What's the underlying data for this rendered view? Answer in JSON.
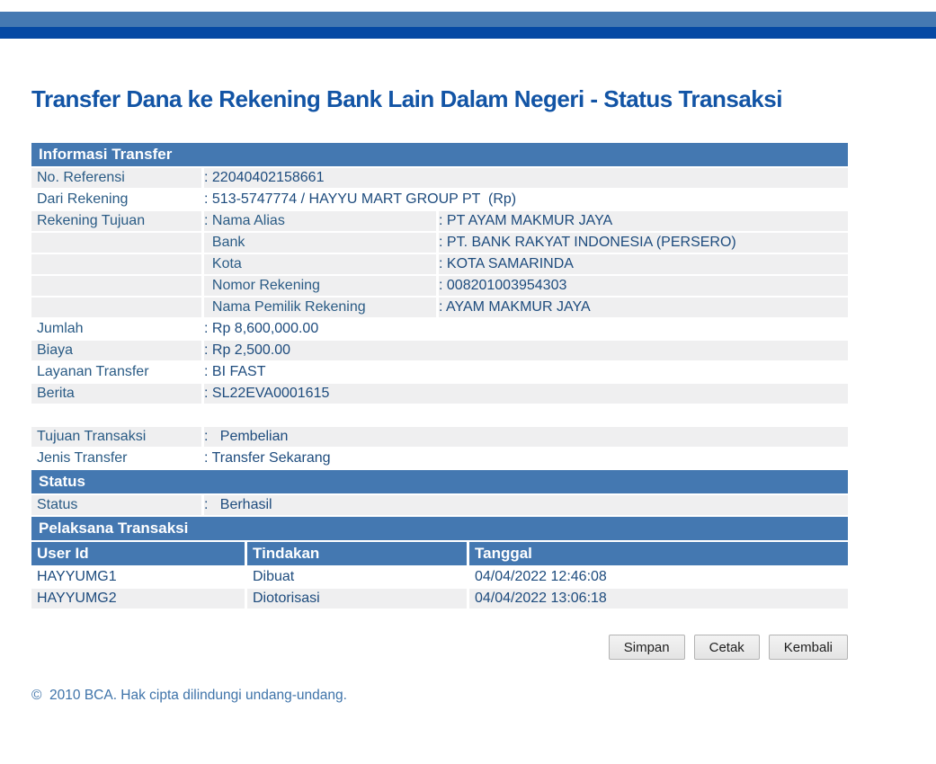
{
  "page": {
    "title": "Transfer Dana ke Rekening Bank Lain Dalam Negeri - Status Transaksi",
    "footer": "©  2010 BCA. Hak cipta dilindungi undang-undang."
  },
  "colors": {
    "topbar_medium": "#4579b2",
    "topbar_dark": "#0549a4",
    "section_header": "#4478b1",
    "row_stripe": "#efeff0",
    "label_text": "#2a5b85",
    "value_text": "#1d4b7d",
    "title_text": "#1254a5"
  },
  "info_table": {
    "header": "Informasi Transfer",
    "rows": [
      {
        "label": "No. Referensi",
        "value": ": 22040402158661"
      },
      {
        "label": "Dari Rekening",
        "value": ": 513-5747774 / HAYYU MART GROUP PT  (Rp)"
      }
    ],
    "rekening_tujuan": {
      "label": "Rekening Tujuan",
      "subrows": [
        {
          "label": ": Nama Alias",
          "value": ": PT AYAM MAKMUR JAYA"
        },
        {
          "label": "  Bank",
          "value": ": PT. BANK RAKYAT INDONESIA (PERSERO)"
        },
        {
          "label": "  Kota",
          "value": ": KOTA SAMARINDA"
        },
        {
          "label": "  Nomor Rekening",
          "value": ": 008201003954303"
        },
        {
          "label": "  Nama Pemilik Rekening",
          "value": ": AYAM MAKMUR JAYA"
        }
      ]
    },
    "rows2": [
      {
        "label": "Jumlah",
        "value": ": Rp 8,600,000.00"
      },
      {
        "label": "Biaya",
        "value": ": Rp 2,500.00"
      },
      {
        "label": "Layanan Transfer",
        "value": ": BI FAST"
      },
      {
        "label": "Berita",
        "value": ": SL22EVA0001615"
      }
    ],
    "rows3": [
      {
        "label": "Tujuan Transaksi",
        "value": ":   Pembelian"
      },
      {
        "label": "Jenis Transfer",
        "value": ": Transfer Sekarang"
      }
    ]
  },
  "status_section": {
    "header": "Status",
    "row": {
      "label": "Status",
      "value": ":   Berhasil"
    }
  },
  "pelaksana_section": {
    "header": "Pelaksana Transaksi",
    "columns": {
      "user_id": "User Id",
      "tindakan": "Tindakan",
      "tanggal": "Tanggal"
    },
    "rows": [
      {
        "user_id": "HAYYUMG1",
        "tindakan": "Dibuat",
        "tanggal": "04/04/2022 12:46:08"
      },
      {
        "user_id": "HAYYUMG2",
        "tindakan": "Diotorisasi",
        "tanggal": "04/04/2022 13:06:18"
      }
    ]
  },
  "buttons": {
    "simpan": "Simpan",
    "cetak": "Cetak",
    "kembali": "Kembali"
  }
}
